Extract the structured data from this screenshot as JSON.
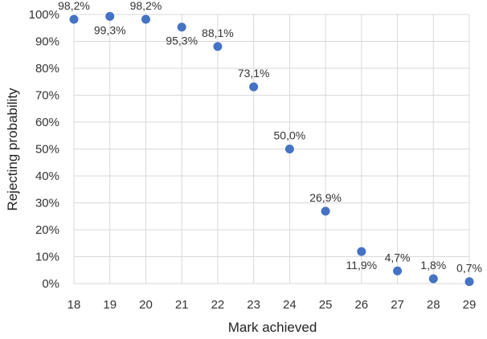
{
  "chart_data": {
    "type": "scatter",
    "title": "",
    "xlabel": "Mark achieved",
    "ylabel": "Rejecting probability",
    "x": [
      18,
      19,
      20,
      21,
      22,
      23,
      24,
      25,
      26,
      27,
      28,
      29
    ],
    "y": [
      98.2,
      99.3,
      98.2,
      95.3,
      88.1,
      73.1,
      50.0,
      26.9,
      11.9,
      4.7,
      1.8,
      0.7
    ],
    "data_labels": [
      "98,2%",
      "99,3%",
      "98,2%",
      "95,3%",
      "88,1%",
      "73,1%",
      "50,0%",
      "26,9%",
      "11,9%",
      "4,7%",
      "1,8%",
      "0,7%"
    ],
    "label_positions": [
      "above",
      "below",
      "above",
      "below",
      "above",
      "above",
      "above",
      "above",
      "below",
      "above",
      "above",
      "above"
    ],
    "x_ticks": [
      "18",
      "19",
      "20",
      "21",
      "22",
      "23",
      "24",
      "25",
      "26",
      "27",
      "28",
      "29"
    ],
    "y_ticks": [
      "0%",
      "10%",
      "20%",
      "30%",
      "40%",
      "50%",
      "60%",
      "70%",
      "80%",
      "90%",
      "100%"
    ],
    "xlim": [
      18,
      29
    ],
    "ylim": [
      0,
      100
    ],
    "grid": true,
    "marker_color": "#4472C4"
  }
}
